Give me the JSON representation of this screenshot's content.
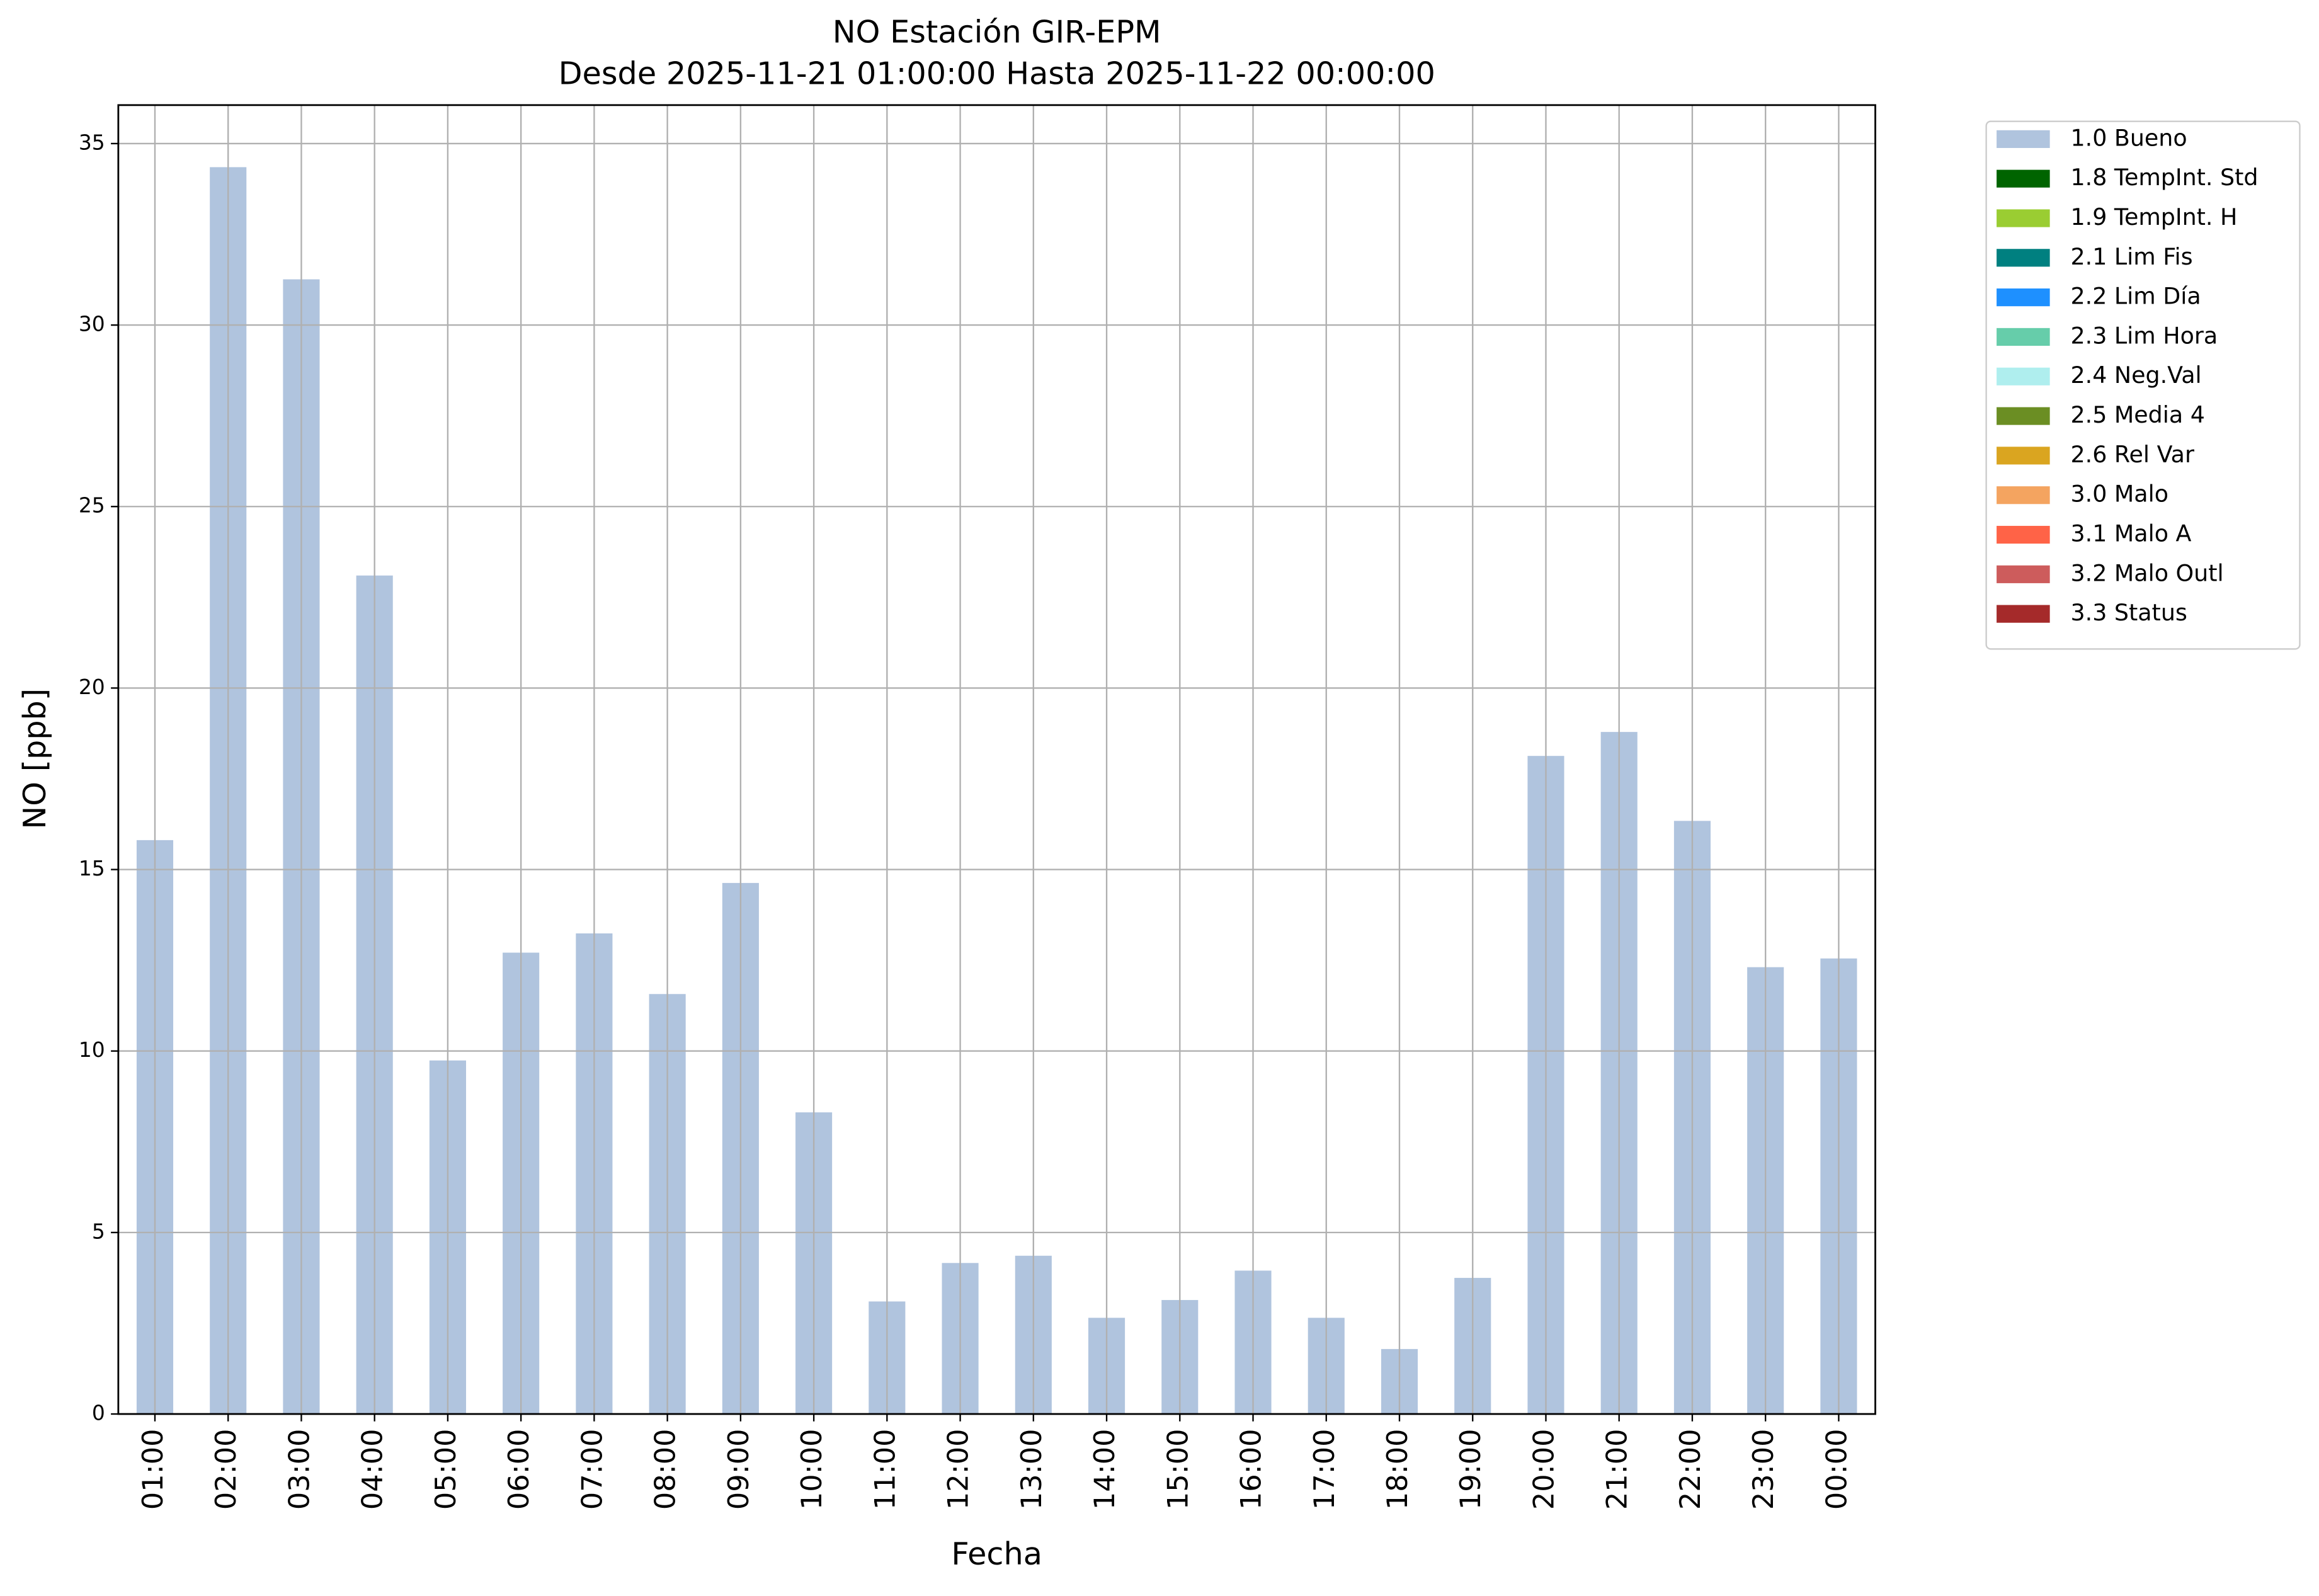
{
  "chart_data": {
    "type": "bar",
    "stacked": true,
    "title": "NO Estación GIR-EPM",
    "subtitle": "Desde 2025-11-21 01:00:00 Hasta 2025-11-22 00:00:00",
    "x_label": "Fecha",
    "y_label": "NO [ppb]",
    "categories": [
      "01:00",
      "02:00",
      "03:00",
      "04:00",
      "05:00",
      "06:00",
      "07:00",
      "08:00",
      "09:00",
      "10:00",
      "11:00",
      "12:00",
      "13:00",
      "14:00",
      "15:00",
      "16:00",
      "17:00",
      "18:00",
      "19:00",
      "20:00",
      "21:00",
      "22:00",
      "23:00",
      "00:00"
    ],
    "series": [
      {
        "name": "1.0 Bueno",
        "color": "#b0c4de",
        "values": [
          15.81,
          34.35,
          31.26,
          23.1,
          9.74,
          12.71,
          13.24,
          11.57,
          14.63,
          8.31,
          3.1,
          4.16,
          4.36,
          2.65,
          3.14,
          3.95,
          2.65,
          1.79,
          3.75,
          18.13,
          18.79,
          16.34,
          12.31,
          12.55
        ]
      },
      {
        "name": "1.8 TempInt. Std",
        "color": "#006400",
        "values": [
          0,
          0,
          0,
          0,
          0,
          0,
          0,
          0,
          0,
          0,
          0,
          0,
          0,
          0,
          0,
          0,
          0,
          0,
          0,
          0,
          0,
          0,
          0,
          0
        ]
      },
      {
        "name": "1.9 TempInt. H",
        "color": "#9acd32",
        "values": [
          0,
          0,
          0,
          0,
          0,
          0,
          0,
          0,
          0,
          0,
          0,
          0,
          0,
          0,
          0,
          0,
          0,
          0,
          0,
          0,
          0,
          0,
          0,
          0
        ]
      },
      {
        "name": "2.1 Lim Fis",
        "color": "#008080",
        "values": [
          0,
          0,
          0,
          0,
          0,
          0,
          0,
          0,
          0,
          0,
          0,
          0,
          0,
          0,
          0,
          0,
          0,
          0,
          0,
          0,
          0,
          0,
          0,
          0
        ]
      },
      {
        "name": "2.2 Lim Día",
        "color": "#1e90ff",
        "values": [
          0,
          0,
          0,
          0,
          0,
          0,
          0,
          0,
          0,
          0,
          0,
          0,
          0,
          0,
          0,
          0,
          0,
          0,
          0,
          0,
          0,
          0,
          0,
          0
        ]
      },
      {
        "name": "2.3 Lim Hora",
        "color": "#66cdaa",
        "values": [
          0,
          0,
          0,
          0,
          0,
          0,
          0,
          0,
          0,
          0,
          0,
          0,
          0,
          0,
          0,
          0,
          0,
          0,
          0,
          0,
          0,
          0,
          0,
          0
        ]
      },
      {
        "name": "2.4 Neg.Val",
        "color": "#afeeee",
        "values": [
          0,
          0,
          0,
          0,
          0,
          0,
          0,
          0,
          0,
          0,
          0,
          0,
          0,
          0,
          0,
          0,
          0,
          0,
          0,
          0,
          0,
          0,
          0,
          0
        ]
      },
      {
        "name": "2.5 Media 4",
        "color": "#6b8e23",
        "values": [
          0,
          0,
          0,
          0,
          0,
          0,
          0,
          0,
          0,
          0,
          0,
          0,
          0,
          0,
          0,
          0,
          0,
          0,
          0,
          0,
          0,
          0,
          0,
          0
        ]
      },
      {
        "name": "2.6 Rel Var",
        "color": "#daa520",
        "values": [
          0,
          0,
          0,
          0,
          0,
          0,
          0,
          0,
          0,
          0,
          0,
          0,
          0,
          0,
          0,
          0,
          0,
          0,
          0,
          0,
          0,
          0,
          0,
          0
        ]
      },
      {
        "name": "3.0 Malo",
        "color": "#f4a460",
        "values": [
          0,
          0,
          0,
          0,
          0,
          0,
          0,
          0,
          0,
          0,
          0,
          0,
          0,
          0,
          0,
          0,
          0,
          0,
          0,
          0,
          0,
          0,
          0,
          0
        ]
      },
      {
        "name": "3.1 Malo A",
        "color": "#ff6347",
        "values": [
          0,
          0,
          0,
          0,
          0,
          0,
          0,
          0,
          0,
          0,
          0,
          0,
          0,
          0,
          0,
          0,
          0,
          0,
          0,
          0,
          0,
          0,
          0,
          0
        ]
      },
      {
        "name": "3.2 Malo Outl",
        "color": "#cd5c5c",
        "values": [
          0,
          0,
          0,
          0,
          0,
          0,
          0,
          0,
          0,
          0,
          0,
          0,
          0,
          0,
          0,
          0,
          0,
          0,
          0,
          0,
          0,
          0,
          0,
          0
        ]
      },
      {
        "name": "3.3 Status",
        "color": "#a52a2a",
        "values": [
          0,
          0,
          0,
          0,
          0,
          0,
          0,
          0,
          0,
          0,
          0,
          0,
          0,
          0,
          0,
          0,
          0,
          0,
          0,
          0,
          0,
          0,
          0,
          0
        ]
      }
    ],
    "ylim": [
      0,
      36.06
    ],
    "yticks": [
      0,
      5,
      10,
      15,
      20,
      25,
      30,
      35
    ],
    "grid": true,
    "legend": "outside-right"
  }
}
